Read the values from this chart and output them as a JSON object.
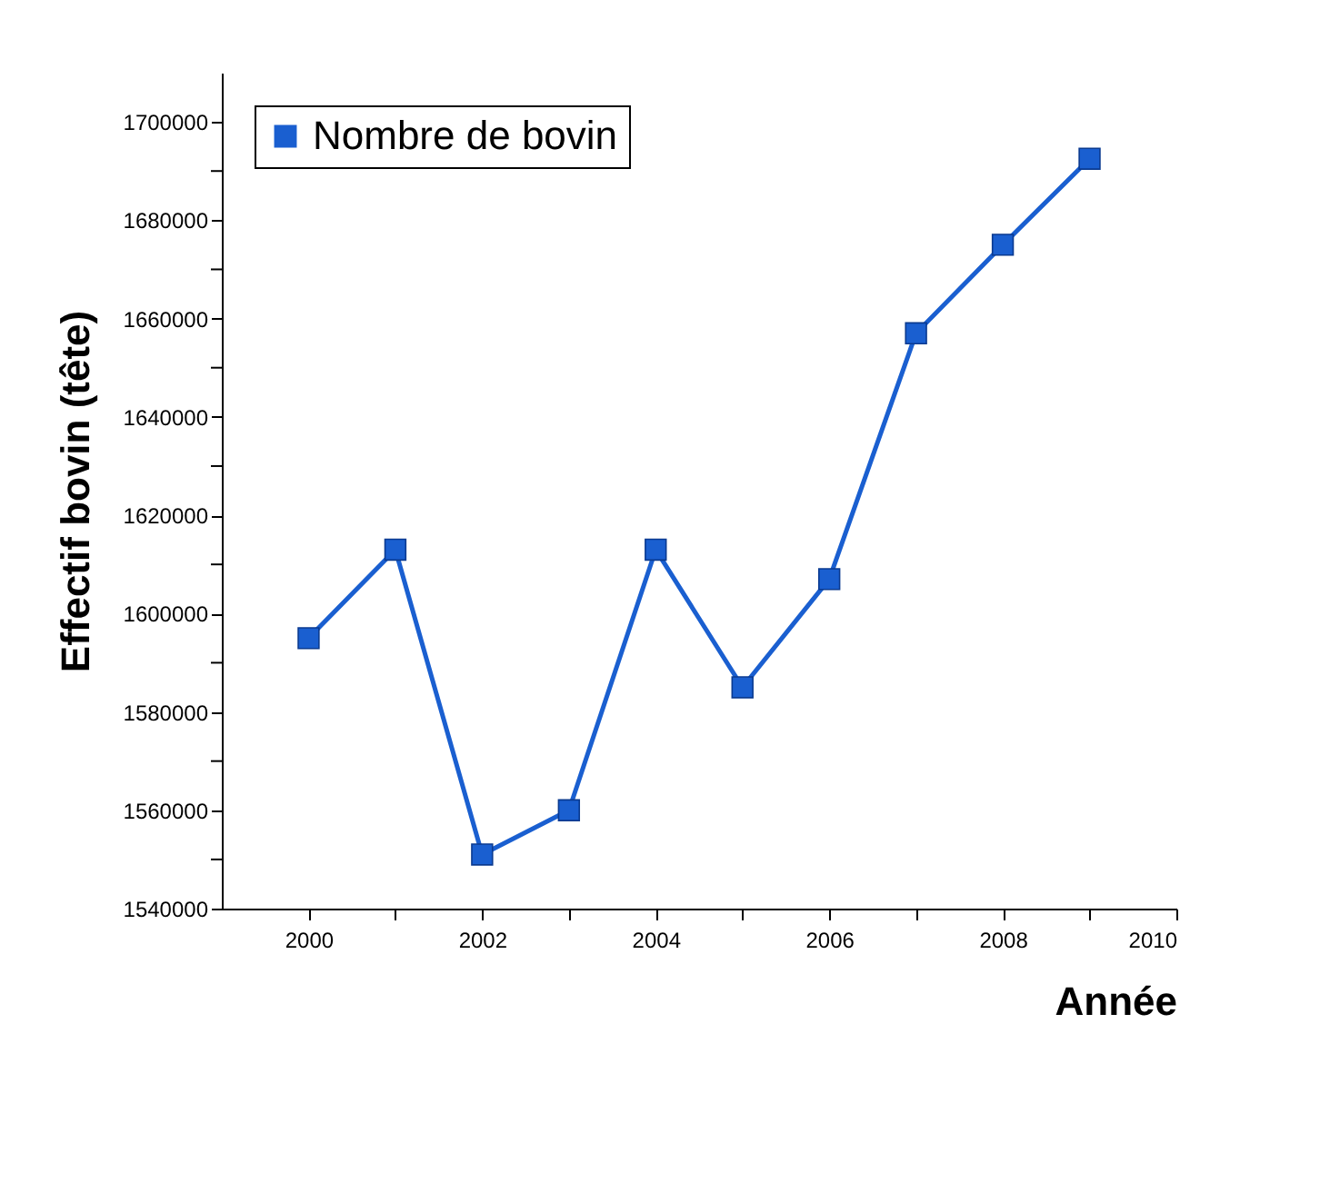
{
  "chart_data": {
    "type": "line",
    "xlabel": "Année",
    "ylabel": "Effectif bovin (tête)",
    "x": [
      2000,
      2001,
      2002,
      2003,
      2004,
      2005,
      2006,
      2007,
      2008,
      2009
    ],
    "series": [
      {
        "name": "Nombre de bovin",
        "color": "#1a5fd0",
        "values": [
          1595000,
          1613000,
          1551000,
          1560000,
          1613000,
          1585000,
          1607000,
          1657000,
          1675000,
          1692500
        ]
      }
    ],
    "marker": "square",
    "line_style": "solid",
    "grid": false,
    "legend": "top left",
    "xlim": [
      1999,
      2010
    ],
    "xticks": [
      2000,
      {
        "value": 2001,
        "label": null
      },
      2002,
      {
        "value": 2003,
        "label": null
      },
      2004,
      {
        "value": 2005,
        "label": null
      },
      2006,
      {
        "value": 2007,
        "label": null
      },
      2008,
      {
        "value": 2009,
        "label": null
      },
      2010
    ],
    "ylim": [
      1540000,
      1710000
    ],
    "yticks": [
      1540000,
      {
        "value": 1550000,
        "label": null
      },
      1560000,
      {
        "value": 1570000,
        "label": null
      },
      1580000,
      {
        "value": 1590000,
        "label": null
      },
      1600000,
      {
        "value": 1610000,
        "label": null
      },
      1620000,
      {
        "value": 1630000,
        "label": null
      },
      1640000,
      {
        "value": 1650000,
        "label": null
      },
      1660000,
      {
        "value": 1670000,
        "label": null
      },
      1680000,
      {
        "value": 1690000,
        "label": null
      },
      1700000
    ]
  }
}
